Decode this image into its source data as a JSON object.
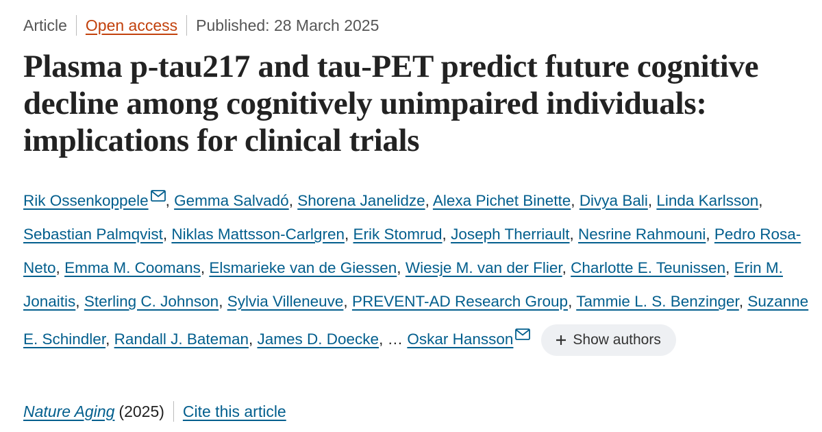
{
  "header": {
    "type": "Article",
    "access": "Open access",
    "published": "Published: 28 March 2025"
  },
  "title": "Plasma p-tau217 and tau-PET predict future cognitive decline among cognitively unimpaired individuals: implications for clinical trials",
  "authors": {
    "separator": ",",
    "ellipsis": "…",
    "list": [
      {
        "name": "Rik Ossenkoppele",
        "email": true
      },
      {
        "name": "Gemma Salvadó"
      },
      {
        "name": "Shorena Janelidze"
      },
      {
        "name": "Alexa Pichet Binette"
      },
      {
        "name": "Divya Bali"
      },
      {
        "name": "Linda Karlsson"
      },
      {
        "name": "Sebastian Palmqvist"
      },
      {
        "name": "Niklas Mattsson-Carlgren"
      },
      {
        "name": "Erik Stomrud"
      },
      {
        "name": "Joseph Therriault"
      },
      {
        "name": "Nesrine Rahmouni"
      },
      {
        "name": "Pedro Rosa-Neto"
      },
      {
        "name": "Emma M. Coomans"
      },
      {
        "name": "Elsmarieke van de Giessen"
      },
      {
        "name": "Wiesje M. van der Flier"
      },
      {
        "name": "Charlotte E. Teunissen"
      },
      {
        "name": "Erin M. Jonaitis"
      },
      {
        "name": "Sterling C. Johnson"
      },
      {
        "name": "Sylvia Villeneuve"
      },
      {
        "name": "PREVENT-AD Research Group"
      },
      {
        "name": "Tammie L. S. Benzinger"
      },
      {
        "name": "Suzanne E. Schindler"
      },
      {
        "name": "Randall J. Bateman"
      },
      {
        "name": "James D. Doecke"
      },
      {
        "name": "Oskar Hansson",
        "email": true
      }
    ],
    "show_button": "Show authors"
  },
  "footer": {
    "journal": "Nature Aging",
    "year": "(2025)",
    "cite": "Cite this article"
  }
}
